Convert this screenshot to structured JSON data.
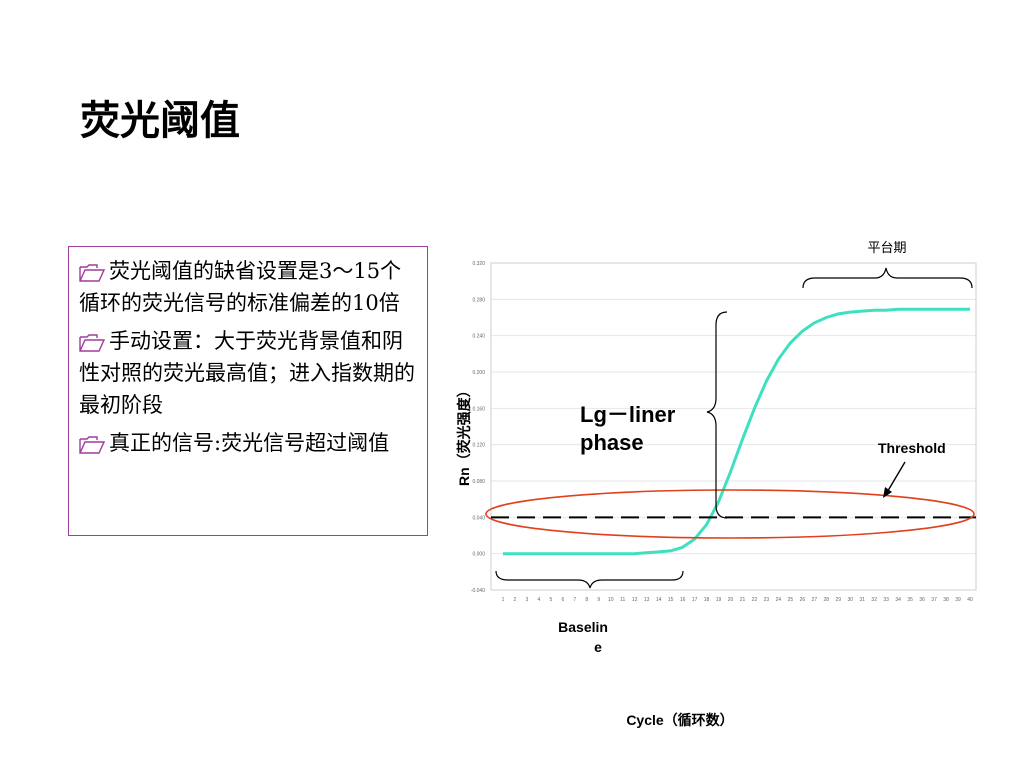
{
  "title": "荧光阈值",
  "bullets": [
    "荧光阈值的缺省设置是3～15个循环的荧光信号的标准偏差的10倍",
    "手动设置：大于荧光背景值和阴性对照的荧光最高值；进入指数期的最初阶段",
    "真正的信号:荧光信号超过阈值"
  ],
  "bullet_icon": "folder-outline-icon",
  "colors": {
    "curve": "#3fe0c0",
    "ellipse": "#e0401c",
    "box_border": "#a03c9a"
  },
  "chart_data": {
    "type": "line",
    "title": "",
    "xlabel": "Cycle（循环数）",
    "ylabel": "Rn（荧光强度）",
    "x": [
      1,
      2,
      3,
      4,
      5,
      6,
      7,
      8,
      9,
      10,
      11,
      12,
      13,
      14,
      15,
      16,
      17,
      18,
      19,
      20,
      21,
      22,
      23,
      24,
      25,
      26,
      27,
      28,
      29,
      30,
      31,
      32,
      33,
      34,
      35,
      36,
      37,
      38,
      39,
      40
    ],
    "xlim": [
      0,
      40.5
    ],
    "ylim": [
      -0.04,
      0.32
    ],
    "yticks": [
      "-0.040",
      "0.000",
      "0.040",
      "0.080",
      "0.120",
      "0.160",
      "0.200",
      "0.240",
      "0.280",
      "0.320"
    ],
    "ytick_values": [
      -0.04,
      0.0,
      0.04,
      0.08,
      0.12,
      0.16,
      0.2,
      0.24,
      0.28,
      0.32
    ],
    "series": [
      {
        "values": [
          0.0,
          0.0,
          0.0,
          0.0,
          0.0,
          0.0,
          0.0,
          0.0,
          0.0,
          0.0,
          0.0,
          0.0,
          0.001,
          0.002,
          0.003,
          0.007,
          0.016,
          0.032,
          0.057,
          0.09,
          0.126,
          0.16,
          0.19,
          0.214,
          0.232,
          0.245,
          0.254,
          0.26,
          0.264,
          0.266,
          0.267,
          0.268,
          0.268,
          0.269,
          0.269,
          0.269,
          0.269,
          0.269,
          0.269,
          0.269
        ]
      }
    ],
    "threshold": 0.04,
    "grid": true,
    "annotations": {
      "plateau": "平台期",
      "linear": "Lg－liner phase",
      "threshold": "Threshold",
      "baseline": "Baseline"
    }
  }
}
